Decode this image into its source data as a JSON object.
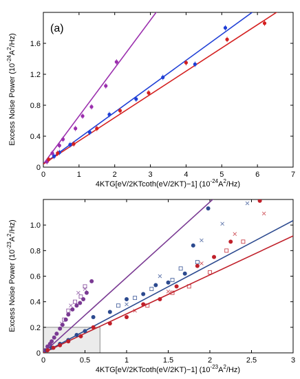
{
  "chart_data": [
    {
      "type": "scatter",
      "panel_label": "(a)",
      "xlabel_main": "4KTG[eV/2KTcoth(eV/2KT)−1]",
      "xlabel_unit": "(10",
      "xlabel_exp1": "-24",
      "xlabel_mid": "A",
      "xlabel_exp2": "2",
      "xlabel_end": "/Hz)",
      "ylabel_main": "Excess Noise Power",
      "ylabel_unit": "(10",
      "ylabel_exp1": "-24",
      "ylabel_mid": "A",
      "ylabel_exp2": "2",
      "ylabel_end": "/Hz)",
      "xlim": [
        0,
        7
      ],
      "ylim": [
        0,
        2
      ],
      "xticks": [
        "0",
        "1",
        "2",
        "3",
        "4",
        "5",
        "6",
        "7"
      ],
      "yticks": [
        "0",
        "0.4",
        "0.8",
        "1.2",
        "1.6"
      ],
      "series": [
        {
          "color": "#9b2fae",
          "fit": {
            "slope": 0.62,
            "intercept": 0.04
          },
          "points": [
            [
              0.1,
              0.07
            ],
            [
              0.25,
              0.18
            ],
            [
              0.45,
              0.28
            ],
            [
              0.55,
              0.36
            ],
            [
              0.9,
              0.5
            ],
            [
              1.1,
              0.66
            ],
            [
              1.35,
              0.78
            ],
            [
              1.75,
              1.05
            ],
            [
              2.05,
              1.36
            ]
          ]
        },
        {
          "color": "#1f3fd6",
          "fit": {
            "slope": 0.335,
            "intercept": 0.04
          },
          "points": [
            [
              0.3,
              0.14
            ],
            [
              0.45,
              0.19
            ],
            [
              0.75,
              0.29
            ],
            [
              1.3,
              0.45
            ],
            [
              1.85,
              0.68
            ],
            [
              2.6,
              0.88
            ],
            [
              3.35,
              1.16
            ],
            [
              4.25,
              1.33
            ],
            [
              5.1,
              1.8
            ]
          ]
        },
        {
          "color": "#d42020",
          "fit": {
            "slope": 0.3,
            "intercept": 0.04
          },
          "points": [
            [
              0.15,
              0.1
            ],
            [
              0.4,
              0.18
            ],
            [
              0.85,
              0.3
            ],
            [
              1.5,
              0.5
            ],
            [
              2.15,
              0.73
            ],
            [
              2.95,
              0.96
            ],
            [
              4.0,
              1.35
            ],
            [
              5.15,
              1.65
            ],
            [
              6.2,
              1.86
            ]
          ]
        }
      ]
    },
    {
      "type": "scatter",
      "xlabel_main": "4KTG[eV/2KTcoth(eV/2KT)−1]",
      "xlabel_unit": "(10",
      "xlabel_exp1": "-23",
      "xlabel_mid": "A",
      "xlabel_exp2": "2",
      "xlabel_end": "/Hz)",
      "ylabel_main": "Excess Noise Power",
      "ylabel_unit": "(10",
      "ylabel_exp1": "-23",
      "ylabel_mid": "A",
      "ylabel_exp2": "2",
      "ylabel_end": "/Hz)",
      "xlim": [
        0,
        3
      ],
      "ylim": [
        0,
        1.2
      ],
      "xticks": [
        "0",
        "0.5",
        "1",
        "1.5",
        "2",
        "2.5",
        "3"
      ],
      "yticks": [
        "0",
        "0.2",
        "0.4",
        "0.6",
        "0.8",
        "1.0"
      ],
      "inset_box": {
        "x": [
          0,
          0.68
        ],
        "y": [
          0,
          0.2
        ]
      },
      "series": [
        {
          "color": "#7a3a93",
          "fit": {
            "slope": 0.59,
            "intercept": 0.0
          },
          "filled": [
            [
              0.02,
              0.02
            ],
            [
              0.05,
              0.05
            ],
            [
              0.08,
              0.07
            ],
            [
              0.1,
              0.09
            ],
            [
              0.13,
              0.12
            ],
            [
              0.16,
              0.15
            ],
            [
              0.2,
              0.19
            ],
            [
              0.23,
              0.22
            ],
            [
              0.27,
              0.26
            ],
            [
              0.3,
              0.3
            ],
            [
              0.35,
              0.34
            ],
            [
              0.4,
              0.37
            ],
            [
              0.44,
              0.39
            ],
            [
              0.48,
              0.42
            ],
            [
              0.52,
              0.47
            ],
            [
              0.58,
              0.56
            ]
          ],
          "open": [
            [
              0.25,
              0.26
            ],
            [
              0.3,
              0.33
            ],
            [
              0.38,
              0.4
            ],
            [
              0.45,
              0.44
            ],
            [
              0.5,
              0.52
            ]
          ],
          "cross": [
            [
              0.22,
              0.23
            ],
            [
              0.33,
              0.37
            ],
            [
              0.42,
              0.47
            ],
            [
              0.5,
              0.5
            ]
          ]
        },
        {
          "color": "#2c4a8f",
          "fit": {
            "slope": 0.345,
            "intercept": 0.0
          },
          "filled": [
            [
              0.04,
              0.02
            ],
            [
              0.1,
              0.04
            ],
            [
              0.2,
              0.07
            ],
            [
              0.3,
              0.1
            ],
            [
              0.4,
              0.14
            ],
            [
              0.5,
              0.17
            ],
            [
              0.6,
              0.28
            ],
            [
              0.8,
              0.32
            ],
            [
              1.0,
              0.42
            ],
            [
              1.2,
              0.46
            ],
            [
              1.35,
              0.53
            ],
            [
              1.5,
              0.55
            ],
            [
              1.7,
              0.62
            ],
            [
              1.8,
              0.84
            ],
            [
              1.98,
              1.13
            ]
          ],
          "open": [
            [
              0.9,
              0.37
            ],
            [
              1.1,
              0.43
            ],
            [
              1.3,
              0.5
            ],
            [
              1.55,
              0.57
            ],
            [
              1.65,
              0.66
            ],
            [
              1.85,
              0.71
            ]
          ],
          "cross": [
            [
              1.0,
              0.38
            ],
            [
              1.4,
              0.6
            ],
            [
              1.9,
              0.88
            ],
            [
              2.15,
              1.01
            ],
            [
              2.45,
              1.17
            ]
          ]
        },
        {
          "color": "#c0202a",
          "fit": {
            "slope": 0.305,
            "intercept": 0.0
          },
          "filled": [
            [
              0.05,
              0.02
            ],
            [
              0.12,
              0.04
            ],
            [
              0.2,
              0.06
            ],
            [
              0.3,
              0.09
            ],
            [
              0.45,
              0.13
            ],
            [
              0.6,
              0.2
            ],
            [
              0.8,
              0.23
            ],
            [
              1.0,
              0.28
            ],
            [
              1.2,
              0.38
            ],
            [
              1.4,
              0.42
            ],
            [
              1.6,
              0.52
            ],
            [
              1.85,
              0.68
            ],
            [
              2.05,
              0.75
            ],
            [
              2.25,
              0.87
            ],
            [
              2.6,
              1.19
            ]
          ],
          "open": [
            [
              1.25,
              0.37
            ],
            [
              1.55,
              0.47
            ],
            [
              1.75,
              0.52
            ],
            [
              2.0,
              0.63
            ],
            [
              2.2,
              0.8
            ],
            [
              2.4,
              0.87
            ]
          ],
          "cross": [
            [
              1.1,
              0.33
            ],
            [
              1.5,
              0.48
            ],
            [
              1.9,
              0.7
            ],
            [
              2.3,
              0.93
            ],
            [
              2.65,
              1.09
            ]
          ]
        }
      ]
    }
  ]
}
